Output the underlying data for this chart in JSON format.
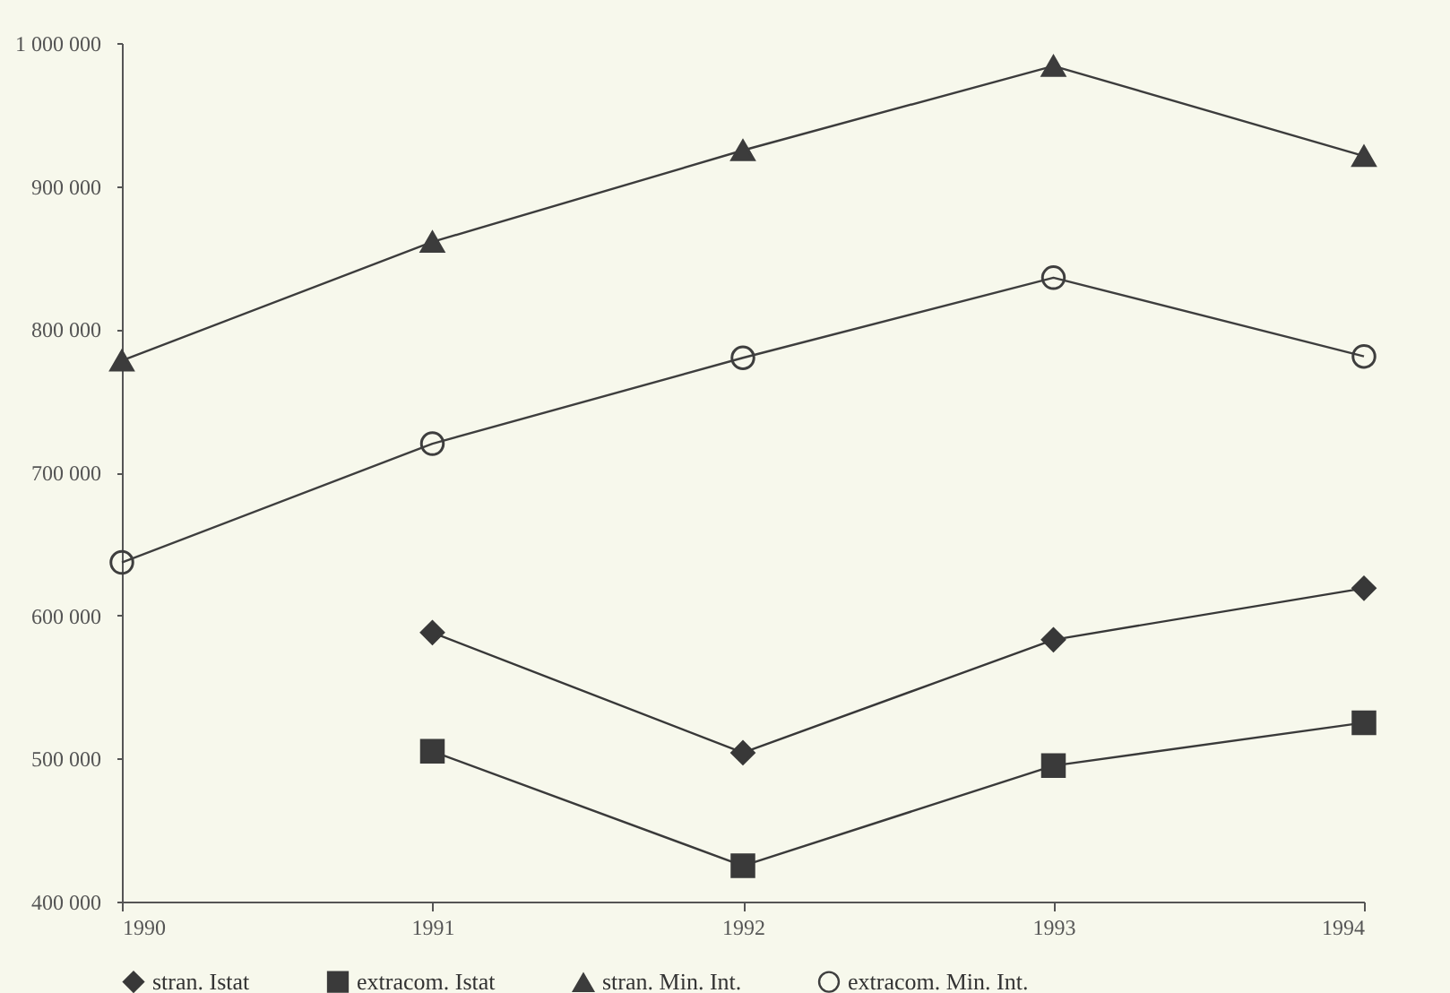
{
  "chart_data": {
    "type": "line",
    "x": [
      1990,
      1991,
      1992,
      1993,
      1994
    ],
    "series": [
      {
        "name": "stran. Istat",
        "color": "#383838",
        "marker": "diamond",
        "values": [
          null,
          588000,
          504000,
          583000,
          619000
        ]
      },
      {
        "name": "extracom. Istat",
        "color": "#3a3a3a",
        "marker": "square",
        "values": [
          null,
          505000,
          425000,
          495000,
          525000
        ]
      },
      {
        "name": "stran. Min. Int.",
        "color": "#3c3c3c",
        "marker": "triangle",
        "values": [
          778000,
          861000,
          925000,
          984000,
          921000
        ]
      },
      {
        "name": "extracom. Min. Int.",
        "color": "#3e3e3e",
        "marker": "circle",
        "values": [
          637000,
          720000,
          780000,
          836000,
          781000
        ]
      }
    ],
    "xlim": [
      1990,
      1994
    ],
    "xticks": [
      1990,
      1991,
      1992,
      1993,
      1994
    ],
    "ylim": [
      400000,
      1000000
    ],
    "yticks": [
      {
        "value": 400000,
        "label": "400 000"
      },
      {
        "value": 500000,
        "label": "500 000"
      },
      {
        "value": 600000,
        "label": "600 000"
      },
      {
        "value": 700000,
        "label": "700 000"
      },
      {
        "value": 800000,
        "label": "800 000"
      },
      {
        "value": 900000,
        "label": "900 000"
      },
      {
        "value": 1000000,
        "label": "1 000 000"
      }
    ],
    "grid": false,
    "legend": "bottom",
    "line_style": "solid"
  }
}
